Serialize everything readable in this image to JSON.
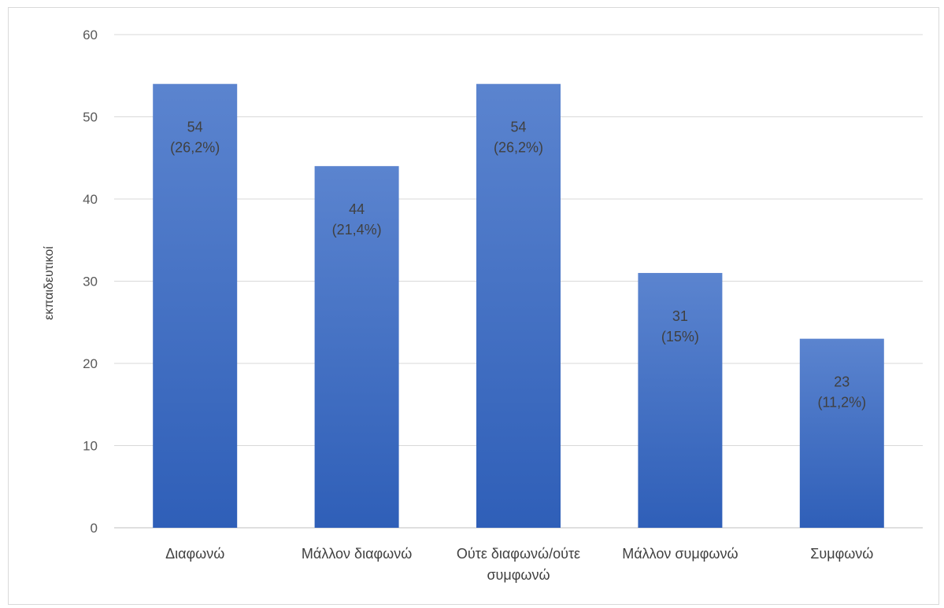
{
  "chart_data": {
    "type": "bar",
    "title": "",
    "xlabel": "",
    "ylabel": "εκπαιδευτικοί",
    "ylim": [
      0,
      60
    ],
    "yticks": [
      0,
      10,
      20,
      30,
      40,
      50,
      60
    ],
    "grid": true,
    "legend": "none",
    "bar_color_top": "#5b84cf",
    "bar_color_bottom": "#2f5fb8",
    "categories": [
      [
        "Διαφωνώ"
      ],
      [
        "Μάλλον διαφωνώ"
      ],
      [
        "Ούτε διαφωνώ/ούτε",
        "συμφωνώ"
      ],
      [
        "Μάλλον συμφωνώ"
      ],
      [
        "Συμφωνώ"
      ]
    ],
    "values": [
      54,
      44,
      54,
      31,
      23
    ],
    "data_labels": [
      [
        "54",
        "(26,2%)"
      ],
      [
        "44",
        "(21,4%)"
      ],
      [
        "54",
        "(26,2%)"
      ],
      [
        "31",
        "(15%)"
      ],
      [
        "23",
        "(11,2%)"
      ]
    ]
  }
}
